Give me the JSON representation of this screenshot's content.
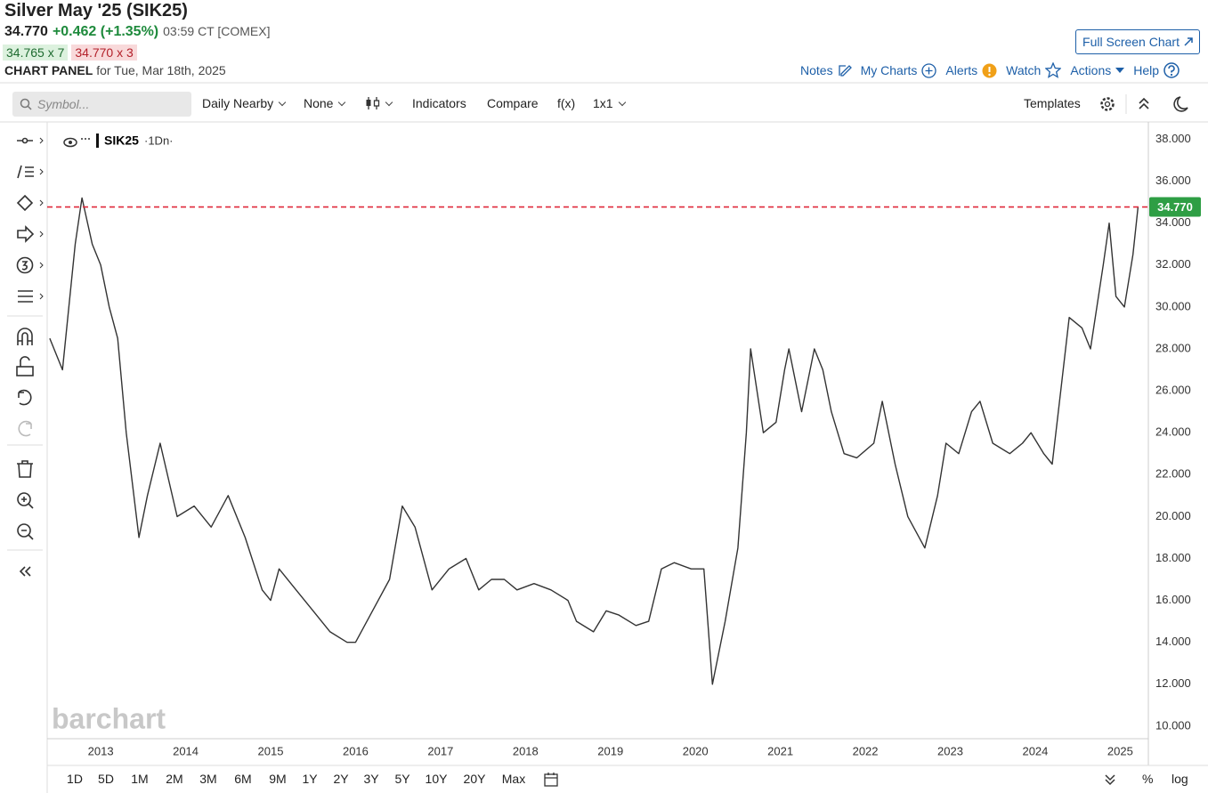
{
  "header": {
    "title": "Silver May '25 (SIK25)",
    "last": "34.770",
    "change": "+0.462 (+1.35%)",
    "time": "03:59 CT [COMEX]",
    "bid": "34.765 x 7",
    "ask": "34.770 x 3",
    "panel": "CHART PANEL",
    "panel_date": "for Tue, Mar 18th, 2025",
    "full_screen": "Full Screen Chart"
  },
  "links": [
    "Notes",
    "My Charts",
    "Alerts",
    "Watch",
    "Actions",
    "Help"
  ],
  "toolbar": {
    "symbol_placeholder": "Symbol...",
    "items": [
      "Daily Nearby",
      "None",
      "Indicators",
      "Compare",
      "f(x)",
      "1x1"
    ],
    "templates": "Templates"
  },
  "periods": [
    "1D",
    "5D",
    "1M",
    "2M",
    "3M",
    "6M",
    "9M",
    "1Y",
    "2Y",
    "3Y",
    "5Y",
    "10Y",
    "20Y",
    "Max"
  ],
  "scale_options": [
    "%",
    "log"
  ],
  "chart_data": {
    "type": "line",
    "interval": "·1Dn·",
    "watermark": "barchart",
    "x": [
      2012.4,
      2012.55,
      2012.7,
      2012.78,
      2012.9,
      2013.0,
      2013.1,
      2013.2,
      2013.3,
      2013.45,
      2013.55,
      2013.7,
      2013.9,
      2014.1,
      2014.3,
      2014.5,
      2014.7,
      2014.9,
      2015.0,
      2015.1,
      2015.3,
      2015.5,
      2015.7,
      2015.9,
      2016.0,
      2016.2,
      2016.4,
      2016.55,
      2016.7,
      2016.9,
      2017.1,
      2017.3,
      2017.45,
      2017.6,
      2017.75,
      2017.9,
      2018.1,
      2018.3,
      2018.5,
      2018.6,
      2018.8,
      2018.95,
      2019.1,
      2019.3,
      2019.45,
      2019.6,
      2019.75,
      2019.95,
      2020.1,
      2020.2,
      2020.35,
      2020.5,
      2020.6,
      2020.65,
      2020.8,
      2020.95,
      2021.05,
      2021.1,
      2021.25,
      2021.4,
      2021.5,
      2021.6,
      2021.75,
      2021.9,
      2022.1,
      2022.2,
      2022.35,
      2022.5,
      2022.7,
      2022.85,
      2022.95,
      2023.1,
      2023.25,
      2023.35,
      2023.5,
      2023.7,
      2023.85,
      2023.95,
      2024.1,
      2024.2,
      2024.3,
      2024.4,
      2024.55,
      2024.65,
      2024.8,
      2024.87,
      2024.95,
      2025.05,
      2025.15,
      2025.21
    ],
    "series": [
      {
        "name": "SIK25",
        "color": "#333333",
        "values": [
          28.5,
          27,
          33,
          35.2,
          33,
          32,
          30,
          28.5,
          24,
          19,
          21,
          23.5,
          20,
          20.5,
          19.5,
          21,
          19,
          16.5,
          16,
          17.5,
          16.5,
          15.5,
          14.5,
          14,
          14,
          15.5,
          17,
          20.5,
          19.5,
          16.5,
          17.5,
          18,
          16.5,
          17,
          17,
          16.5,
          16.8,
          16.5,
          16,
          15,
          14.5,
          15.5,
          15.3,
          14.8,
          15,
          17.5,
          17.8,
          17.5,
          17.5,
          12,
          15,
          18.5,
          24,
          28,
          24,
          24.5,
          27,
          28,
          25,
          28,
          27,
          25,
          23,
          22.8,
          23.5,
          25.5,
          22.5,
          20,
          18.5,
          21,
          23.5,
          23,
          25,
          25.5,
          23.5,
          23,
          23.5,
          24,
          23,
          22.5,
          26,
          29.5,
          29,
          28,
          32,
          34,
          30.5,
          30,
          32.5,
          34.77
        ]
      }
    ],
    "price_line": {
      "value": 34.77,
      "label": "34.770",
      "color": "#e0283a"
    },
    "xlim": [
      2012.37,
      2025.3
    ],
    "xticks": [
      2013,
      2014,
      2015,
      2016,
      2017,
      2018,
      2019,
      2020,
      2021,
      2022,
      2023,
      2024,
      2025
    ],
    "ylim": [
      9.4,
      38.7
    ],
    "yticks": [
      {
        "value": 10,
        "label": "10.000"
      },
      {
        "value": 12,
        "label": "12.000"
      },
      {
        "value": 14,
        "label": "14.000"
      },
      {
        "value": 16,
        "label": "16.000"
      },
      {
        "value": 18,
        "label": "18.000"
      },
      {
        "value": 20,
        "label": "20.000"
      },
      {
        "value": 22,
        "label": "22.000"
      },
      {
        "value": 24,
        "label": "24.000"
      },
      {
        "value": 26,
        "label": "26.000"
      },
      {
        "value": 28,
        "label": "28.000"
      },
      {
        "value": 30,
        "label": "30.000"
      },
      {
        "value": 32,
        "label": "32.000"
      },
      {
        "value": 34,
        "label": "34.000"
      },
      {
        "value": 36,
        "label": "36.000"
      },
      {
        "value": 38,
        "label": "38.000"
      }
    ]
  }
}
